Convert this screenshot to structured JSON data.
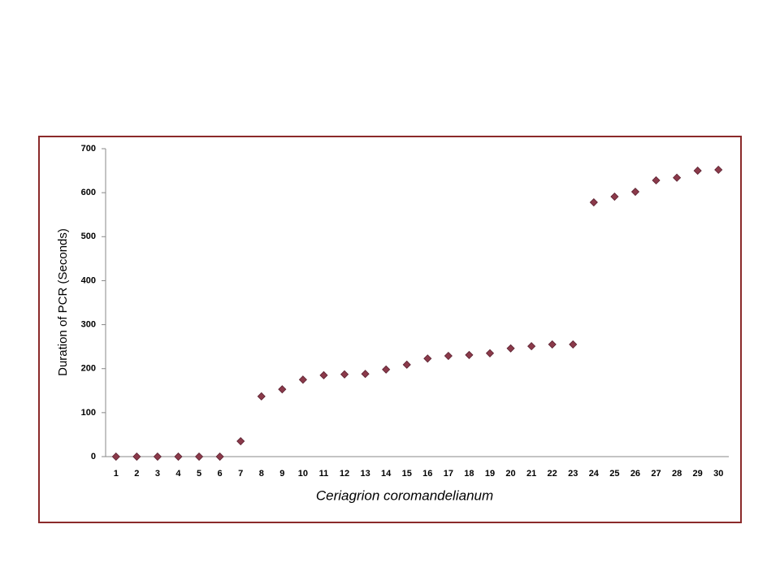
{
  "chart_data": {
    "type": "scatter",
    "x_label": "Ceriagrion  coromandelianum",
    "y_label": "Duration of PCR (Seconds)",
    "x": [
      1,
      2,
      3,
      4,
      5,
      6,
      7,
      8,
      9,
      10,
      11,
      12,
      13,
      14,
      15,
      16,
      17,
      18,
      19,
      20,
      21,
      22,
      23,
      24,
      25,
      26,
      27,
      28,
      29,
      30
    ],
    "values": [
      0,
      0,
      0,
      0,
      0,
      0,
      35,
      137,
      153,
      175,
      185,
      187,
      188,
      198,
      209,
      223,
      229,
      231,
      235,
      246,
      251,
      255,
      255,
      578,
      591,
      602,
      628,
      634,
      650,
      652
    ],
    "color": "#8b3a4a",
    "xlim": [
      0.5,
      30.5
    ],
    "ylim": [
      0,
      700
    ],
    "yticks": [
      0,
      100,
      200,
      300,
      400,
      500,
      600,
      700
    ]
  }
}
